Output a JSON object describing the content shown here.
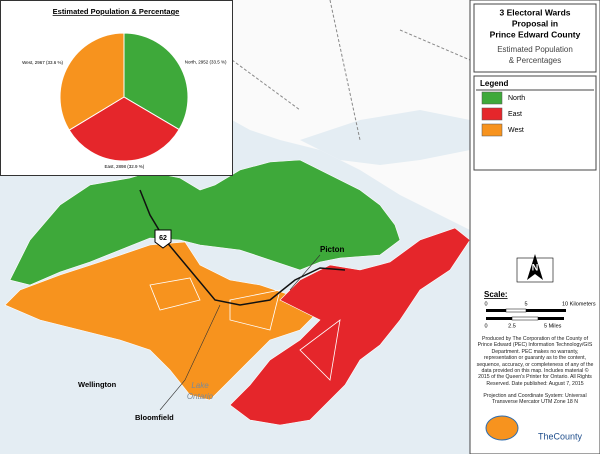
{
  "chart_data": {
    "type": "pie",
    "title": "Estimated Population & Percentage",
    "categories": [
      "North",
      "East",
      "West"
    ],
    "values": [
      2952,
      2898,
      2967
    ],
    "value_labels": [
      "North, 2952 (33.5 %)",
      "East, 2898 (32.9 %)",
      "West, 2967 (33.6 %)"
    ],
    "colors": [
      "#3ea93a",
      "#e5262b",
      "#f7931e"
    ]
  },
  "map": {
    "highway": "62",
    "town": "Picton",
    "places": [
      "Wellington",
      "Bloomfield"
    ],
    "lake": [
      "Lake",
      "Ontario"
    ]
  },
  "panel": {
    "title": [
      "3 Electoral Wards",
      "Proposal in",
      "Prince Edward County"
    ],
    "subtitle": [
      "Estimated Population",
      "& Percentages"
    ],
    "legend_title": "Legend",
    "north": "N",
    "scale_title": "Scale:",
    "scale_km": [
      "0",
      "5",
      "10 Kilometers"
    ],
    "scale_mi": [
      "0",
      "2.5",
      "5 Miles"
    ],
    "credits": "Produced by The Corporation of the County of Prince Edward (PEC) Information Technology/GIS Department. PEC makes no warranty, representation or guaranty as to the content, sequence, accuracy, or completeness of any of the data provided on this map. Includes material © 2015 of the Queen's Printer for Ontario. All Rights Reserved. Date published: August 7, 2015",
    "projection": "Projection and Coordinate System: Universal Transverse Mercator UTM Zone 18 N",
    "logo": "TheCounty"
  }
}
